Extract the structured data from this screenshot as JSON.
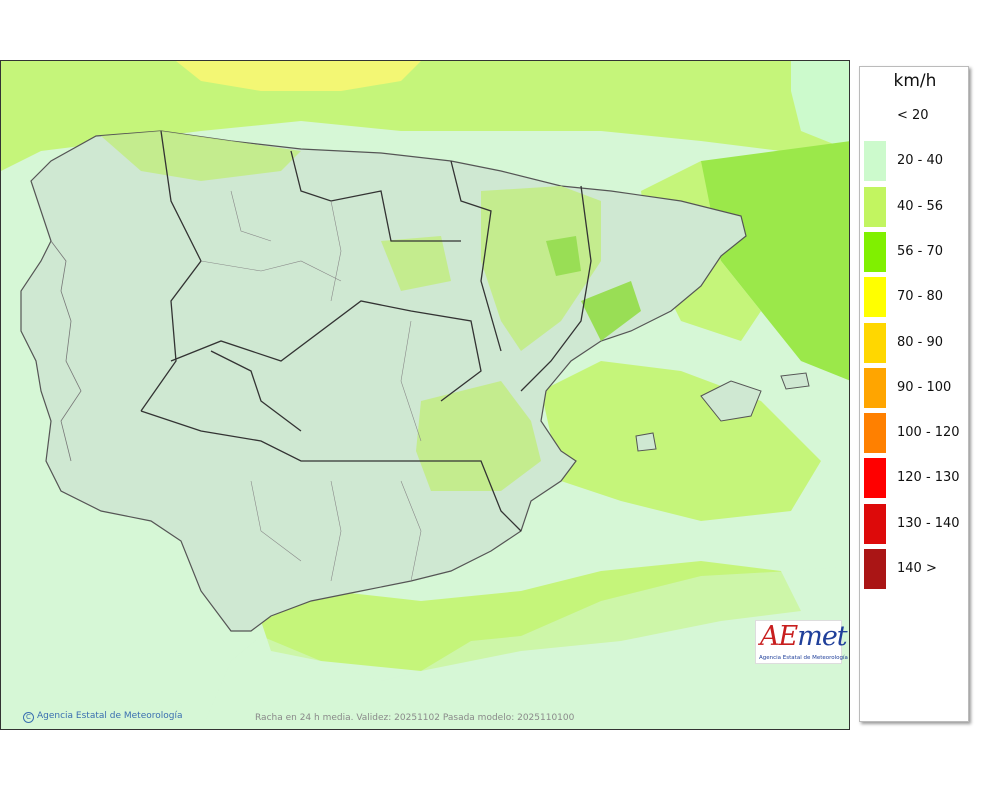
{
  "map": {
    "footer_copyright": "Agencia Estatal de Meteorología",
    "footer_info": "Racha en 24 h media. Validez: 20251102 Pasada modelo: 2025110100",
    "logo_text_ae": "AE",
    "logo_text_met": "met",
    "logo_subtitle": "Agencia Estatal de Meteorología"
  },
  "legend": {
    "unit": "km/h",
    "items": [
      {
        "label": "< 20",
        "color": "#ffffff"
      },
      {
        "label": "20 - 40",
        "color": "#ccfacc"
      },
      {
        "label": "40 - 56",
        "color": "#c2f560"
      },
      {
        "label": "56 - 70",
        "color": "#80f000"
      },
      {
        "label": "70 - 80",
        "color": "#ffff00"
      },
      {
        "label": "80 - 90",
        "color": "#ffd700"
      },
      {
        "label": "90 - 100",
        "color": "#ffa500"
      },
      {
        "label": "100 - 120",
        "color": "#ff8000"
      },
      {
        "label": "120 - 130",
        "color": "#ff0000"
      },
      {
        "label": "130 - 140",
        "color": "#dd0a0a"
      },
      {
        "label": "140 >",
        "color": "#aa1515"
      }
    ]
  }
}
